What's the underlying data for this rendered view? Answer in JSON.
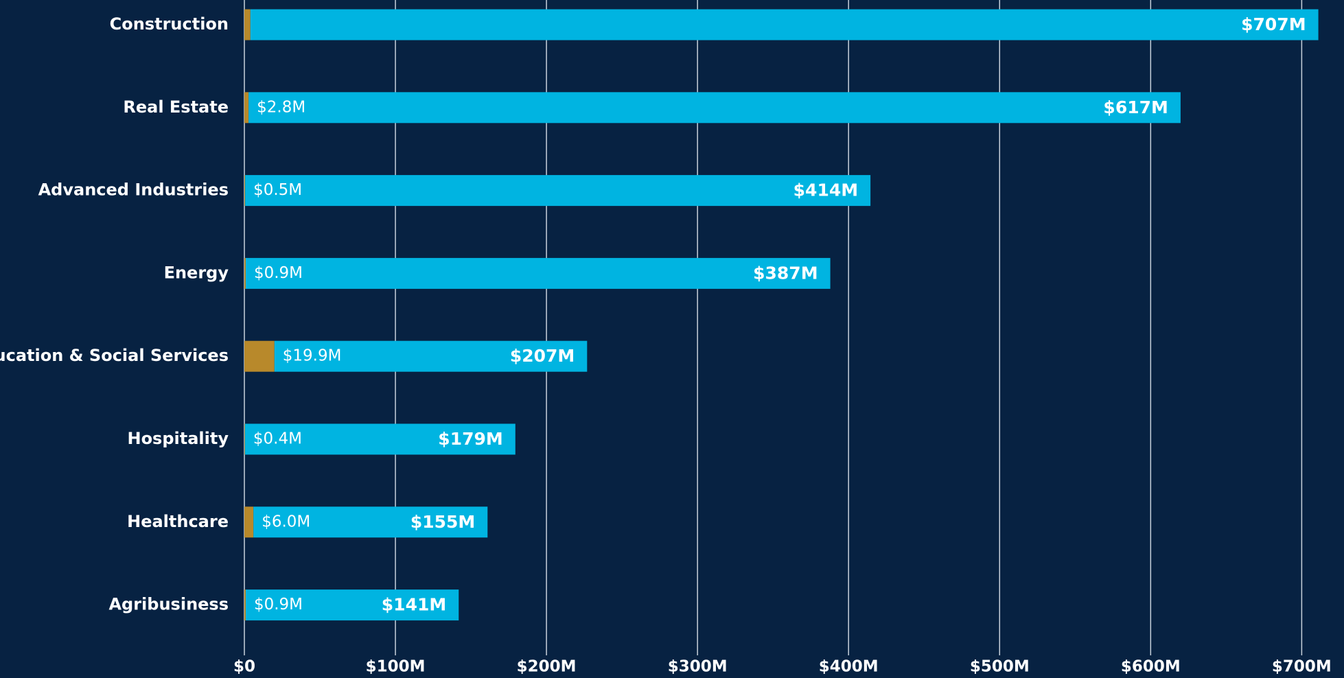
{
  "chart_data": {
    "type": "stacked-bar-horizontal",
    "categories": [
      "Construction",
      "Real Estate",
      "Advanced Industries",
      "Energy",
      "Education & Social Services",
      "Hospitality",
      "Healthcare",
      "Agribusiness"
    ],
    "series": [
      {
        "color": "#b8892b",
        "values": [
          4,
          2.8,
          0.5,
          0.9,
          19.9,
          0.4,
          6.0,
          0.9
        ],
        "value_labels": [
          null,
          "$2.8M",
          "$0.5M",
          "$0.9M",
          "$19.9M",
          "$0.4M",
          "$6.0M",
          "$0.9M"
        ]
      },
      {
        "color": "#00b4e1",
        "values": [
          707,
          617,
          414,
          387,
          207,
          179,
          155,
          141
        ],
        "value_labels": [
          "$707M",
          "$617M",
          "$414M",
          "$387M",
          "$207M",
          "$179M",
          "$155M",
          "$141M"
        ]
      }
    ],
    "xlim": [
      0,
      728
    ],
    "xticks": [
      {
        "value": 0,
        "label": "$0"
      },
      {
        "value": 100,
        "label": "$100M"
      },
      {
        "value": 200,
        "label": "$200M"
      },
      {
        "value": 300,
        "label": "$300M"
      },
      {
        "value": 400,
        "label": "$400M"
      },
      {
        "value": 500,
        "label": "$500M"
      },
      {
        "value": 600,
        "label": "$600M"
      },
      {
        "value": 700,
        "label": "$700M"
      }
    ],
    "grid": true
  }
}
